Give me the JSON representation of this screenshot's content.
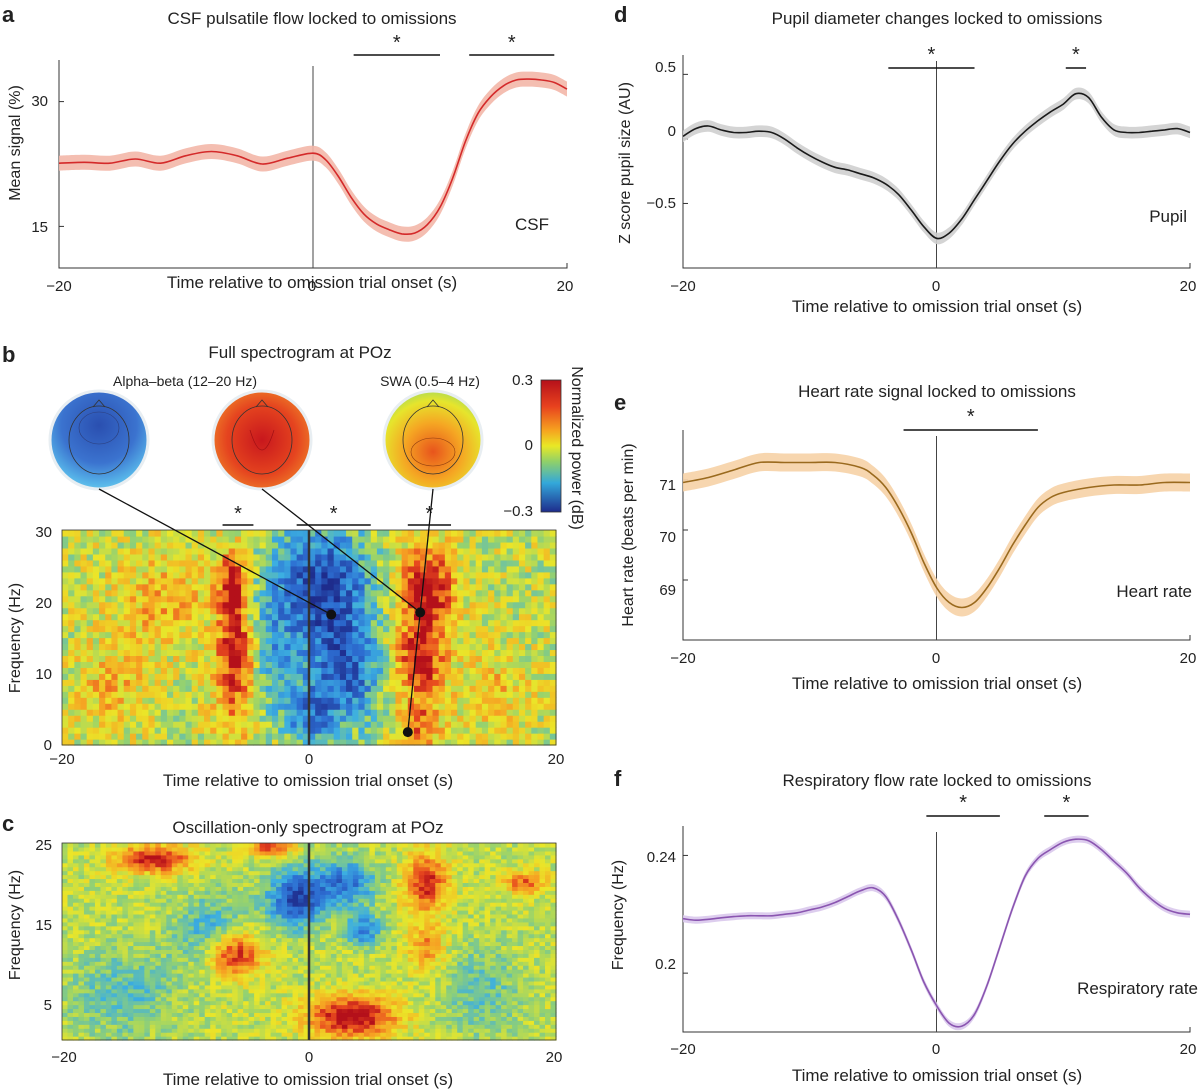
{
  "colors": {
    "csf": "#d42a2a",
    "csf_band": "#f3b7a8",
    "pupil": "#1a1a1a",
    "pupil_band": "#cfcfcf",
    "heart": "#9a6a1e",
    "heart_band": "#f6d2a6",
    "resp": "#8a55b0",
    "resp_band": "#d9c8ec"
  },
  "chart_data": [
    {
      "panel": "a",
      "type": "line",
      "title": "CSF pulsatile flow locked to omissions",
      "xlabel": "Time relative to omission trial onset (s)",
      "ylabel": "Mean signal (%)",
      "xlim": [
        -20,
        20
      ],
      "ylim": [
        10,
        35
      ],
      "xticks": [
        "−20",
        "0",
        "20"
      ],
      "yticks": [
        {
          "v": 30,
          "label": "30"
        },
        {
          "v": 15,
          "label": "15"
        }
      ],
      "series_label": "CSF",
      "x": [
        -20,
        -18,
        -16,
        -14,
        -12,
        -10,
        -8,
        -6,
        -4,
        -2,
        0,
        1,
        2,
        3,
        4,
        5,
        6,
        7,
        8,
        9,
        10,
        11,
        12,
        13,
        14,
        15,
        16,
        17,
        18,
        19,
        20
      ],
      "y": [
        22.6,
        22.7,
        22.6,
        23.1,
        22.6,
        23.5,
        24.0,
        23.5,
        22.5,
        23.2,
        23.8,
        23.0,
        21.0,
        18.5,
        16.5,
        15.3,
        14.6,
        14.1,
        14.2,
        15.2,
        17.3,
        20.8,
        25.2,
        28.6,
        30.6,
        31.9,
        32.6,
        32.7,
        32.6,
        32.3,
        31.5
      ],
      "band": 0.9,
      "zero_line": true,
      "sig_bars": [
        {
          "from": 3.2,
          "to": 10,
          "label": "*"
        },
        {
          "from": 12.3,
          "to": 19,
          "label": "*"
        }
      ]
    },
    {
      "panel": "b",
      "type": "heatmap",
      "title": "Full spectrogram at POz",
      "xlabel": "Time relative to omission trial onset (s)",
      "ylabel": "Frequency (Hz)",
      "xlim": [
        -20,
        20
      ],
      "ylim": [
        0,
        30
      ],
      "xticks": [
        "−20",
        "0",
        "20"
      ],
      "yticks": [
        "0",
        "10",
        "20",
        "30"
      ],
      "colorbar": {
        "label": "Normalized power (dB)",
        "ticks": [
          "0.3",
          "0",
          "−0.3"
        ]
      },
      "topomaps": [
        {
          "label": "Alpha–beta (12–20 Hz)"
        },
        {
          "label": "SWA (0.5–4 Hz)"
        }
      ],
      "sig_bars": [
        {
          "from": -7,
          "to": -4.5,
          "label": "*"
        },
        {
          "from": -1,
          "to": 5,
          "label": "*"
        },
        {
          "from": 8,
          "to": 11.5,
          "label": "*"
        }
      ],
      "markers": [
        {
          "x": 1.8,
          "y": 18.2
        },
        {
          "x": 9,
          "y": 18.5
        },
        {
          "x": 8,
          "y": 1.8
        }
      ],
      "blobs": [
        {
          "x": -6.2,
          "y": 22,
          "sx": 0.8,
          "sy": 3.5,
          "a": 0.9
        },
        {
          "x": -5.9,
          "y": 13,
          "sx": 1.0,
          "sy": 3.5,
          "a": 0.9
        },
        {
          "x": -6.0,
          "y": 5,
          "sx": 1.3,
          "sy": 4,
          "a": 0.4
        },
        {
          "x": 9.5,
          "y": 22,
          "sx": 1.6,
          "sy": 4,
          "a": 0.9
        },
        {
          "x": 9.0,
          "y": 12,
          "sx": 1.4,
          "sy": 4,
          "a": 0.8
        },
        {
          "x": 9.0,
          "y": 3,
          "sx": 1.2,
          "sy": 2.5,
          "a": 0.5
        },
        {
          "x": 1.0,
          "y": 22,
          "sx": 2.8,
          "sy": 6,
          "a": -1.0
        },
        {
          "x": 3.0,
          "y": 10,
          "sx": 2.0,
          "sy": 5,
          "a": -0.8
        },
        {
          "x": 0.0,
          "y": 4,
          "sx": 1.5,
          "sy": 3,
          "a": -0.6
        },
        {
          "x": -12,
          "y": 20,
          "sx": 3,
          "sy": 5,
          "a": 0.3
        },
        {
          "x": -16,
          "y": 8,
          "sx": 2,
          "sy": 4,
          "a": 0.3
        },
        {
          "x": 15,
          "y": 8,
          "sx": 2,
          "sy": 4,
          "a": 0.25
        },
        {
          "x": -3,
          "y": 12,
          "sx": 1.5,
          "sy": 6,
          "a": -0.35
        }
      ]
    },
    {
      "panel": "c",
      "type": "heatmap",
      "title": "Oscillation-only spectrogram at POz",
      "xlabel": "Time relative to omission trial onset (s)",
      "ylabel": "Frequency (Hz)",
      "xlim": [
        -20,
        20
      ],
      "ylim": [
        0,
        25
      ],
      "xticks": [
        "−20",
        "0",
        "20"
      ],
      "yticks": [
        "5",
        "15",
        "25"
      ],
      "blobs": [
        {
          "x": -12.5,
          "y": 23,
          "sx": 2.2,
          "sy": 1.2,
          "a": 0.85
        },
        {
          "x": -6,
          "y": 11,
          "sx": 1.5,
          "sy": 2,
          "a": 0.85
        },
        {
          "x": 3.5,
          "y": 3,
          "sx": 2.5,
          "sy": 1.8,
          "a": 1.0
        },
        {
          "x": 9.5,
          "y": 20,
          "sx": 1.2,
          "sy": 2.5,
          "a": 0.8
        },
        {
          "x": 9.5,
          "y": 12,
          "sx": 1.0,
          "sy": 2,
          "a": 0.5
        },
        {
          "x": 17.5,
          "y": 20,
          "sx": 1.2,
          "sy": 1,
          "a": 0.6
        },
        {
          "x": -1,
          "y": 18,
          "sx": 1.6,
          "sy": 2.5,
          "a": -0.95
        },
        {
          "x": 3,
          "y": 20,
          "sx": 1.6,
          "sy": 2,
          "a": -0.7
        },
        {
          "x": 4.5,
          "y": 14,
          "sx": 1.0,
          "sy": 1.5,
          "a": -0.6
        },
        {
          "x": -8,
          "y": 14,
          "sx": 2,
          "sy": 3,
          "a": -0.4
        },
        {
          "x": -15,
          "y": 6,
          "sx": 3,
          "sy": 4,
          "a": -0.3
        },
        {
          "x": 14,
          "y": 6,
          "sx": 2,
          "sy": 4,
          "a": -0.3
        },
        {
          "x": -3,
          "y": 24.5,
          "sx": 1.2,
          "sy": 0.8,
          "a": 0.7
        }
      ]
    },
    {
      "panel": "d",
      "type": "line",
      "title": "Pupil diameter changes locked to omissions",
      "xlabel": "Time relative to omission trial onset (s)",
      "ylabel": "Z score pupil size (AU)",
      "xlim": [
        -20,
        20
      ],
      "ylim": [
        -1.0,
        0.65
      ],
      "xticks": [
        "−20",
        "0",
        "20"
      ],
      "yticks": [
        {
          "v": 0.5,
          "label": "0.5"
        },
        {
          "v": 0,
          "label": "0"
        },
        {
          "v": -0.5,
          "label": "−0.5"
        }
      ],
      "series_label": "Pupil",
      "x": [
        -20,
        -19,
        -18,
        -17,
        -16,
        -15,
        -14,
        -13,
        -12,
        -11,
        -10,
        -9,
        -8,
        -7,
        -6,
        -5,
        -4,
        -3,
        -2,
        -1,
        0,
        1,
        2,
        3,
        4,
        5,
        6,
        7,
        8,
        9,
        10,
        11,
        12,
        13,
        14,
        15,
        16,
        17,
        18,
        19,
        20
      ],
      "y": [
        0.02,
        0.08,
        0.1,
        0.07,
        0.05,
        0.05,
        0.06,
        0.05,
        0.0,
        -0.07,
        -0.13,
        -0.18,
        -0.22,
        -0.24,
        -0.27,
        -0.3,
        -0.35,
        -0.43,
        -0.55,
        -0.68,
        -0.77,
        -0.73,
        -0.62,
        -0.47,
        -0.32,
        -0.17,
        -0.04,
        0.06,
        0.14,
        0.21,
        0.27,
        0.35,
        0.32,
        0.17,
        0.07,
        0.05,
        0.05,
        0.06,
        0.07,
        0.08,
        0.05
      ],
      "band": 0.045,
      "zero_line": true,
      "sig_bars": [
        {
          "from": -3.8,
          "to": 3,
          "label": "*"
        },
        {
          "from": 10.2,
          "to": 11.8,
          "label": "*"
        }
      ]
    },
    {
      "panel": "e",
      "type": "line",
      "title": "Heart rate signal locked to omissions",
      "xlabel": "Time relative to omission trial onset (s)",
      "ylabel": "Heart rate (beats per min)",
      "xlim": [
        -20,
        20
      ],
      "ylim": [
        67.8,
        72.0
      ],
      "xticks": [
        "−20",
        "0",
        "20"
      ],
      "yticks": [
        {
          "v": 71,
          "label": "71"
        },
        {
          "v": 70,
          "label": "70"
        },
        {
          "v": 69,
          "label": "69"
        }
      ],
      "series_label": "Heart rate",
      "x": [
        -20,
        -18,
        -16,
        -14,
        -12,
        -10,
        -8,
        -6,
        -5,
        -4,
        -3,
        -2,
        -1,
        0,
        1,
        2,
        3,
        4,
        5,
        6,
        7,
        8,
        9,
        10,
        12,
        14,
        16,
        18,
        20
      ],
      "y": [
        70.95,
        71.05,
        71.2,
        71.35,
        71.35,
        71.35,
        71.35,
        71.25,
        71.1,
        70.85,
        70.45,
        69.95,
        69.35,
        68.85,
        68.55,
        68.45,
        68.55,
        68.85,
        69.25,
        69.7,
        70.1,
        70.45,
        70.65,
        70.75,
        70.85,
        70.9,
        70.9,
        70.95,
        70.95
      ],
      "band": 0.18,
      "zero_line": true,
      "sig_bars": [
        {
          "from": -2.6,
          "to": 8,
          "label": "*"
        }
      ]
    },
    {
      "panel": "f",
      "type": "line",
      "title": "Respiratory flow rate locked to omissions",
      "xlabel": "Time relative to omission trial onset (s)",
      "ylabel": "Frequency (Hz)",
      "xlim": [
        -20,
        20
      ],
      "ylim": [
        0.18,
        0.25
      ],
      "xticks": [
        "−20",
        "0",
        "20"
      ],
      "yticks": [
        {
          "v": 0.24,
          "label": "0.24"
        },
        {
          "v": 0.2,
          "label": "0.2"
        }
      ],
      "series_label": "Respiratory rate",
      "x": [
        -20,
        -19,
        -18,
        -17,
        -16,
        -15,
        -14,
        -13,
        -12,
        -11,
        -10,
        -9,
        -8,
        -7,
        -6,
        -5,
        -4,
        -3,
        -2,
        -1,
        0,
        1,
        2,
        3,
        4,
        5,
        6,
        7,
        8,
        9,
        10,
        11,
        12,
        13,
        14,
        15,
        16,
        17,
        18,
        19,
        20
      ],
      "y": [
        0.2185,
        0.218,
        0.2183,
        0.2188,
        0.2192,
        0.2195,
        0.2195,
        0.2195,
        0.22,
        0.2205,
        0.2215,
        0.2225,
        0.224,
        0.226,
        0.228,
        0.229,
        0.226,
        0.218,
        0.208,
        0.197,
        0.189,
        0.183,
        0.182,
        0.186,
        0.196,
        0.209,
        0.222,
        0.233,
        0.239,
        0.242,
        0.2445,
        0.2455,
        0.245,
        0.242,
        0.238,
        0.234,
        0.229,
        0.225,
        0.222,
        0.2205,
        0.22
      ],
      "band": 0.0012,
      "zero_line": true,
      "sig_bars": [
        {
          "from": -0.8,
          "to": 5,
          "label": "*"
        },
        {
          "from": 8.5,
          "to": 12,
          "label": "*"
        }
      ]
    }
  ]
}
